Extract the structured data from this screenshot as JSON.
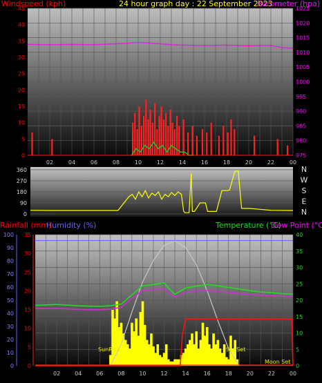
{
  "header": {
    "windspeed_label": "Windspeed (kph)",
    "title": "24 hour graph day : 22 September 2023",
    "barometer_label": "Barometer (hpa)"
  },
  "colors": {
    "wind": "#ff0000",
    "gust": "#ff2020",
    "avg_wind": "#22cc22",
    "barometer": "#e020e0",
    "direction": "#ffff00",
    "rain": "#ff1010",
    "humidity": "#6060ff",
    "temperature": "#22dd22",
    "dew": "#cc33cc",
    "solar": "#ffff00",
    "solar_max": "#c8c8c8",
    "axis_text_left": "#ff0000",
    "axis_text_right": "#ff00ff",
    "axis_text_green": "#22dd22"
  },
  "labels": {
    "rainfall": "Rainfall (mm)",
    "humidity": "Humidity (%)",
    "temperature": "Temperature (°C)",
    "dew_point": "Dew Point (°C)",
    "sunrise": "SunRise",
    "sunset": "SunSet",
    "moonset": "Moon Set",
    "compass": [
      "N",
      "W",
      "S",
      "E",
      "N"
    ]
  },
  "chart_data": [
    {
      "type": "line",
      "name": "wind-barometer",
      "x_ticks": [
        "02",
        "04",
        "06",
        "08",
        "10",
        "12",
        "14",
        "16",
        "18",
        "20",
        "22",
        "00"
      ],
      "left_axis": {
        "label": "Windspeed (kph)",
        "range": [
          0,
          45
        ],
        "ticks": [
          0,
          5,
          10,
          15,
          20,
          25,
          30,
          35,
          40,
          45
        ]
      },
      "right_axis": {
        "label": "Barometer (hpa)",
        "range": [
          975,
          1025
        ],
        "ticks": [
          975,
          980,
          985,
          990,
          995,
          1000,
          1005,
          1010,
          1015,
          1020,
          1025
        ]
      },
      "series": [
        {
          "name": "Barometer (hpa)",
          "x_hours": [
            0,
            2,
            4,
            6,
            8,
            9,
            10,
            11,
            12,
            13,
            14,
            16,
            18,
            20,
            22,
            23,
            24
          ],
          "values": [
            1012.7,
            1012.6,
            1012.7,
            1012.6,
            1012.9,
            1013.1,
            1013.4,
            1013.2,
            1012.9,
            1012.6,
            1012.5,
            1012.3,
            1012.5,
            1012.2,
            1012.4,
            1011.6,
            1011.4
          ]
        }
      ],
      "gust_bars": {
        "x_hours": [
          0.4,
          2.2,
          9.5,
          9.7,
          9.9,
          10.1,
          10.3,
          10.5,
          10.7,
          10.9,
          11.1,
          11.3,
          11.5,
          11.7,
          11.9,
          12.1,
          12.3,
          12.5,
          12.7,
          12.9,
          13.1,
          13.3,
          13.5,
          13.7,
          14.1,
          14.5,
          14.9,
          15.3,
          15.8,
          16.2,
          16.6,
          17.3,
          17.7,
          18.1,
          18.4,
          18.7,
          20.5,
          22.6,
          23.5
        ],
        "values": [
          7,
          5,
          10,
          13,
          8,
          15,
          9,
          12,
          17,
          11,
          14,
          10,
          16,
          8,
          12,
          15,
          11,
          13,
          9,
          14,
          10,
          8,
          12,
          9,
          11,
          7,
          9,
          6,
          8,
          7,
          10,
          6,
          9,
          7,
          11,
          8,
          6,
          5,
          3
        ]
      },
      "avg_wind": {
        "x_hours": [
          9.4,
          9.8,
          10.2,
          10.6,
          11,
          11.4,
          11.8,
          12.2,
          12.6,
          13,
          13.4,
          13.8,
          14.2,
          14.6,
          15
        ],
        "values": [
          0,
          2,
          1,
          3,
          2,
          4,
          2,
          3,
          1,
          3,
          2,
          1,
          1,
          0,
          0
        ]
      }
    },
    {
      "type": "line",
      "name": "wind-direction",
      "y_axis": {
        "range": [
          0,
          360
        ],
        "ticks": [
          0,
          90,
          180,
          270,
          360
        ]
      },
      "series": [
        {
          "name": "Direction",
          "x_hours": [
            0,
            2,
            4,
            6,
            8,
            9.0,
            9.3,
            9.6,
            9.9,
            10.2,
            10.5,
            10.8,
            11.1,
            11.4,
            11.7,
            12.0,
            12.3,
            12.6,
            12.9,
            13.2,
            13.5,
            13.8,
            14.0,
            14.1,
            14.5,
            14.7,
            14.8,
            15.0,
            15.5,
            16.0,
            16.2,
            16.5,
            17.0,
            17.5,
            18.0,
            18.2,
            18.7,
            19.0,
            19.3,
            20,
            22,
            24
          ],
          "values": [
            30,
            28,
            28,
            28,
            28,
            140,
            160,
            120,
            180,
            140,
            190,
            130,
            170,
            150,
            180,
            120,
            160,
            140,
            175,
            150,
            180,
            160,
            25,
            10,
            10,
            330,
            20,
            20,
            90,
            90,
            20,
            20,
            20,
            190,
            190,
            195,
            350,
            350,
            45,
            45,
            30,
            28
          ]
        }
      ]
    },
    {
      "type": "line",
      "name": "rain-humidity-temperature-solar",
      "left_axis_humidity": {
        "label": "Humidity (%)",
        "range": [
          0,
          100
        ],
        "ticks": [
          0,
          10,
          20,
          30,
          40,
          50,
          60,
          70,
          80,
          90,
          100
        ]
      },
      "left_axis_rain": {
        "label": "Rainfall (mm)",
        "range": [
          0,
          35
        ],
        "ticks": [
          0,
          5,
          10,
          15,
          20,
          25,
          30,
          35
        ]
      },
      "right_axis": {
        "label": "Temperature (°C)",
        "range": [
          0,
          40
        ],
        "ticks": [
          0,
          5,
          10,
          15,
          20,
          25,
          30,
          35,
          40
        ]
      },
      "series": [
        {
          "name": "Humidity (%)",
          "x_hours": [
            0,
            24
          ],
          "values": [
            95.5,
            95.5
          ]
        },
        {
          "name": "Temperature (°C)",
          "x_hours": [
            0,
            2,
            4,
            5,
            6,
            7,
            8,
            9,
            10,
            11,
            12,
            12.5,
            13,
            14,
            15,
            16,
            17,
            18,
            19,
            20,
            21,
            22,
            23,
            24
          ],
          "values": [
            18.4,
            18.7,
            18.3,
            18.2,
            18.1,
            18.3,
            18.8,
            21.6,
            24.4,
            24.8,
            25.3,
            23.4,
            21.8,
            23.7,
            24.3,
            24.8,
            24.4,
            23.9,
            23.4,
            22.9,
            22.5,
            22.3,
            22.0,
            21.8
          ]
        },
        {
          "name": "Dew Point (°C)",
          "x_hours": [
            0,
            2,
            4,
            5,
            6,
            7,
            8,
            9,
            10,
            11,
            12,
            12.5,
            13,
            14,
            15,
            16,
            17,
            18,
            19,
            20,
            21,
            22,
            23,
            24
          ],
          "values": [
            17.5,
            17.5,
            17.2,
            17.1,
            17.1,
            17.3,
            17.8,
            20.6,
            23.0,
            23.2,
            23.5,
            22.0,
            21.0,
            22.4,
            22.8,
            23.0,
            22.7,
            22.3,
            22.0,
            21.8,
            21.5,
            21.4,
            21.2,
            21.2
          ]
        },
        {
          "name": "Rainfall (mm)",
          "x_hours": [
            0,
            13.5,
            13.7,
            14.0,
            23.9,
            24
          ],
          "values": [
            0,
            0,
            8,
            12.5,
            12.5,
            0
          ]
        },
        {
          "name": "Solar max",
          "x_hours": [
            7,
            8,
            9,
            10,
            11,
            12,
            13,
            14,
            15,
            16,
            17,
            18,
            19
          ],
          "values": [
            0,
            10,
            25,
            39,
            49,
            56,
            58,
            55,
            47,
            35,
            21,
            8,
            0
          ]
        }
      ],
      "solar_bars": {
        "x_hours": [
          7.0,
          7.2,
          7.4,
          7.6,
          7.8,
          8.0,
          8.2,
          8.4,
          8.6,
          8.8,
          9.0,
          9.2,
          9.4,
          9.6,
          9.8,
          10.0,
          10.2,
          10.4,
          10.6,
          10.8,
          11.0,
          11.2,
          11.4,
          11.6,
          11.8,
          12.0,
          12.2,
          12.4,
          12.6,
          12.8,
          13.0,
          13.2,
          13.4,
          13.6,
          13.8,
          14.0,
          14.2,
          14.4,
          14.6,
          14.8,
          15.0,
          15.2,
          15.4,
          15.6,
          15.8,
          16.0,
          16.2,
          16.4,
          16.6,
          16.8,
          17.0,
          17.2,
          17.4,
          17.6,
          17.8,
          18.0,
          18.2,
          18.4,
          18.6,
          18.8
        ],
        "values": [
          5,
          26,
          22,
          30,
          18,
          20,
          15,
          12,
          10,
          8,
          20,
          16,
          22,
          14,
          25,
          30,
          19,
          12,
          10,
          15,
          9,
          6,
          10,
          5,
          4,
          6,
          10,
          3,
          2,
          2,
          3,
          3,
          3,
          5,
          6,
          8,
          10,
          12,
          15,
          10,
          16,
          8,
          12,
          20,
          14,
          18,
          10,
          8,
          15,
          10,
          12,
          8,
          6,
          10,
          4,
          3,
          14,
          8,
          12,
          3
        ]
      },
      "solar_scale": 61
    }
  ]
}
